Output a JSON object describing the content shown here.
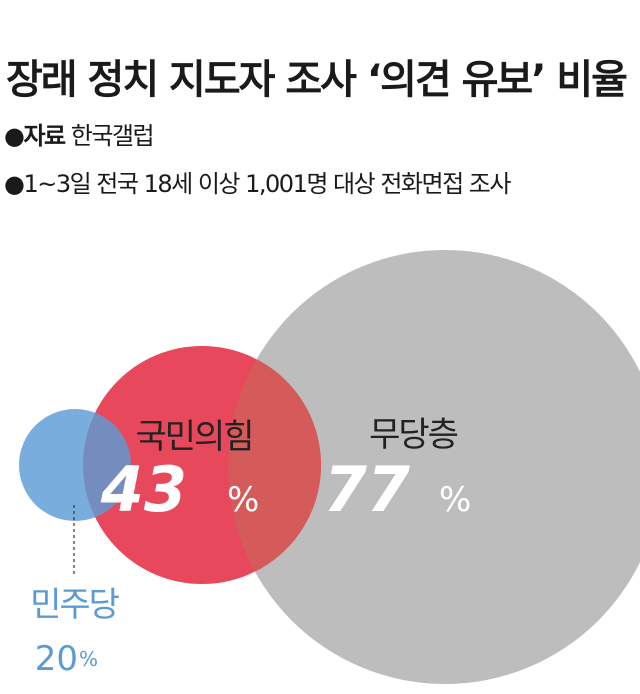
{
  "chart_data": {
    "type": "venn",
    "title": "장래 정치 지도자 조사 ‘의견 유보’ 비율",
    "source_label": "자료",
    "source_value": "한국갤럽",
    "bullet": "●",
    "note": "1~3일 전국 18세 이상 1,001명 대상 전화면접 조사",
    "unit": "%",
    "series": [
      {
        "name": "민주당",
        "value": 20,
        "color": "#5b9bd5"
      },
      {
        "name": "국민의힘",
        "value": 43,
        "color": "#e8485b"
      },
      {
        "name": "무당층",
        "value": 77,
        "color": "#bdbdbd"
      }
    ],
    "overlap_color": "#d55a5a"
  }
}
